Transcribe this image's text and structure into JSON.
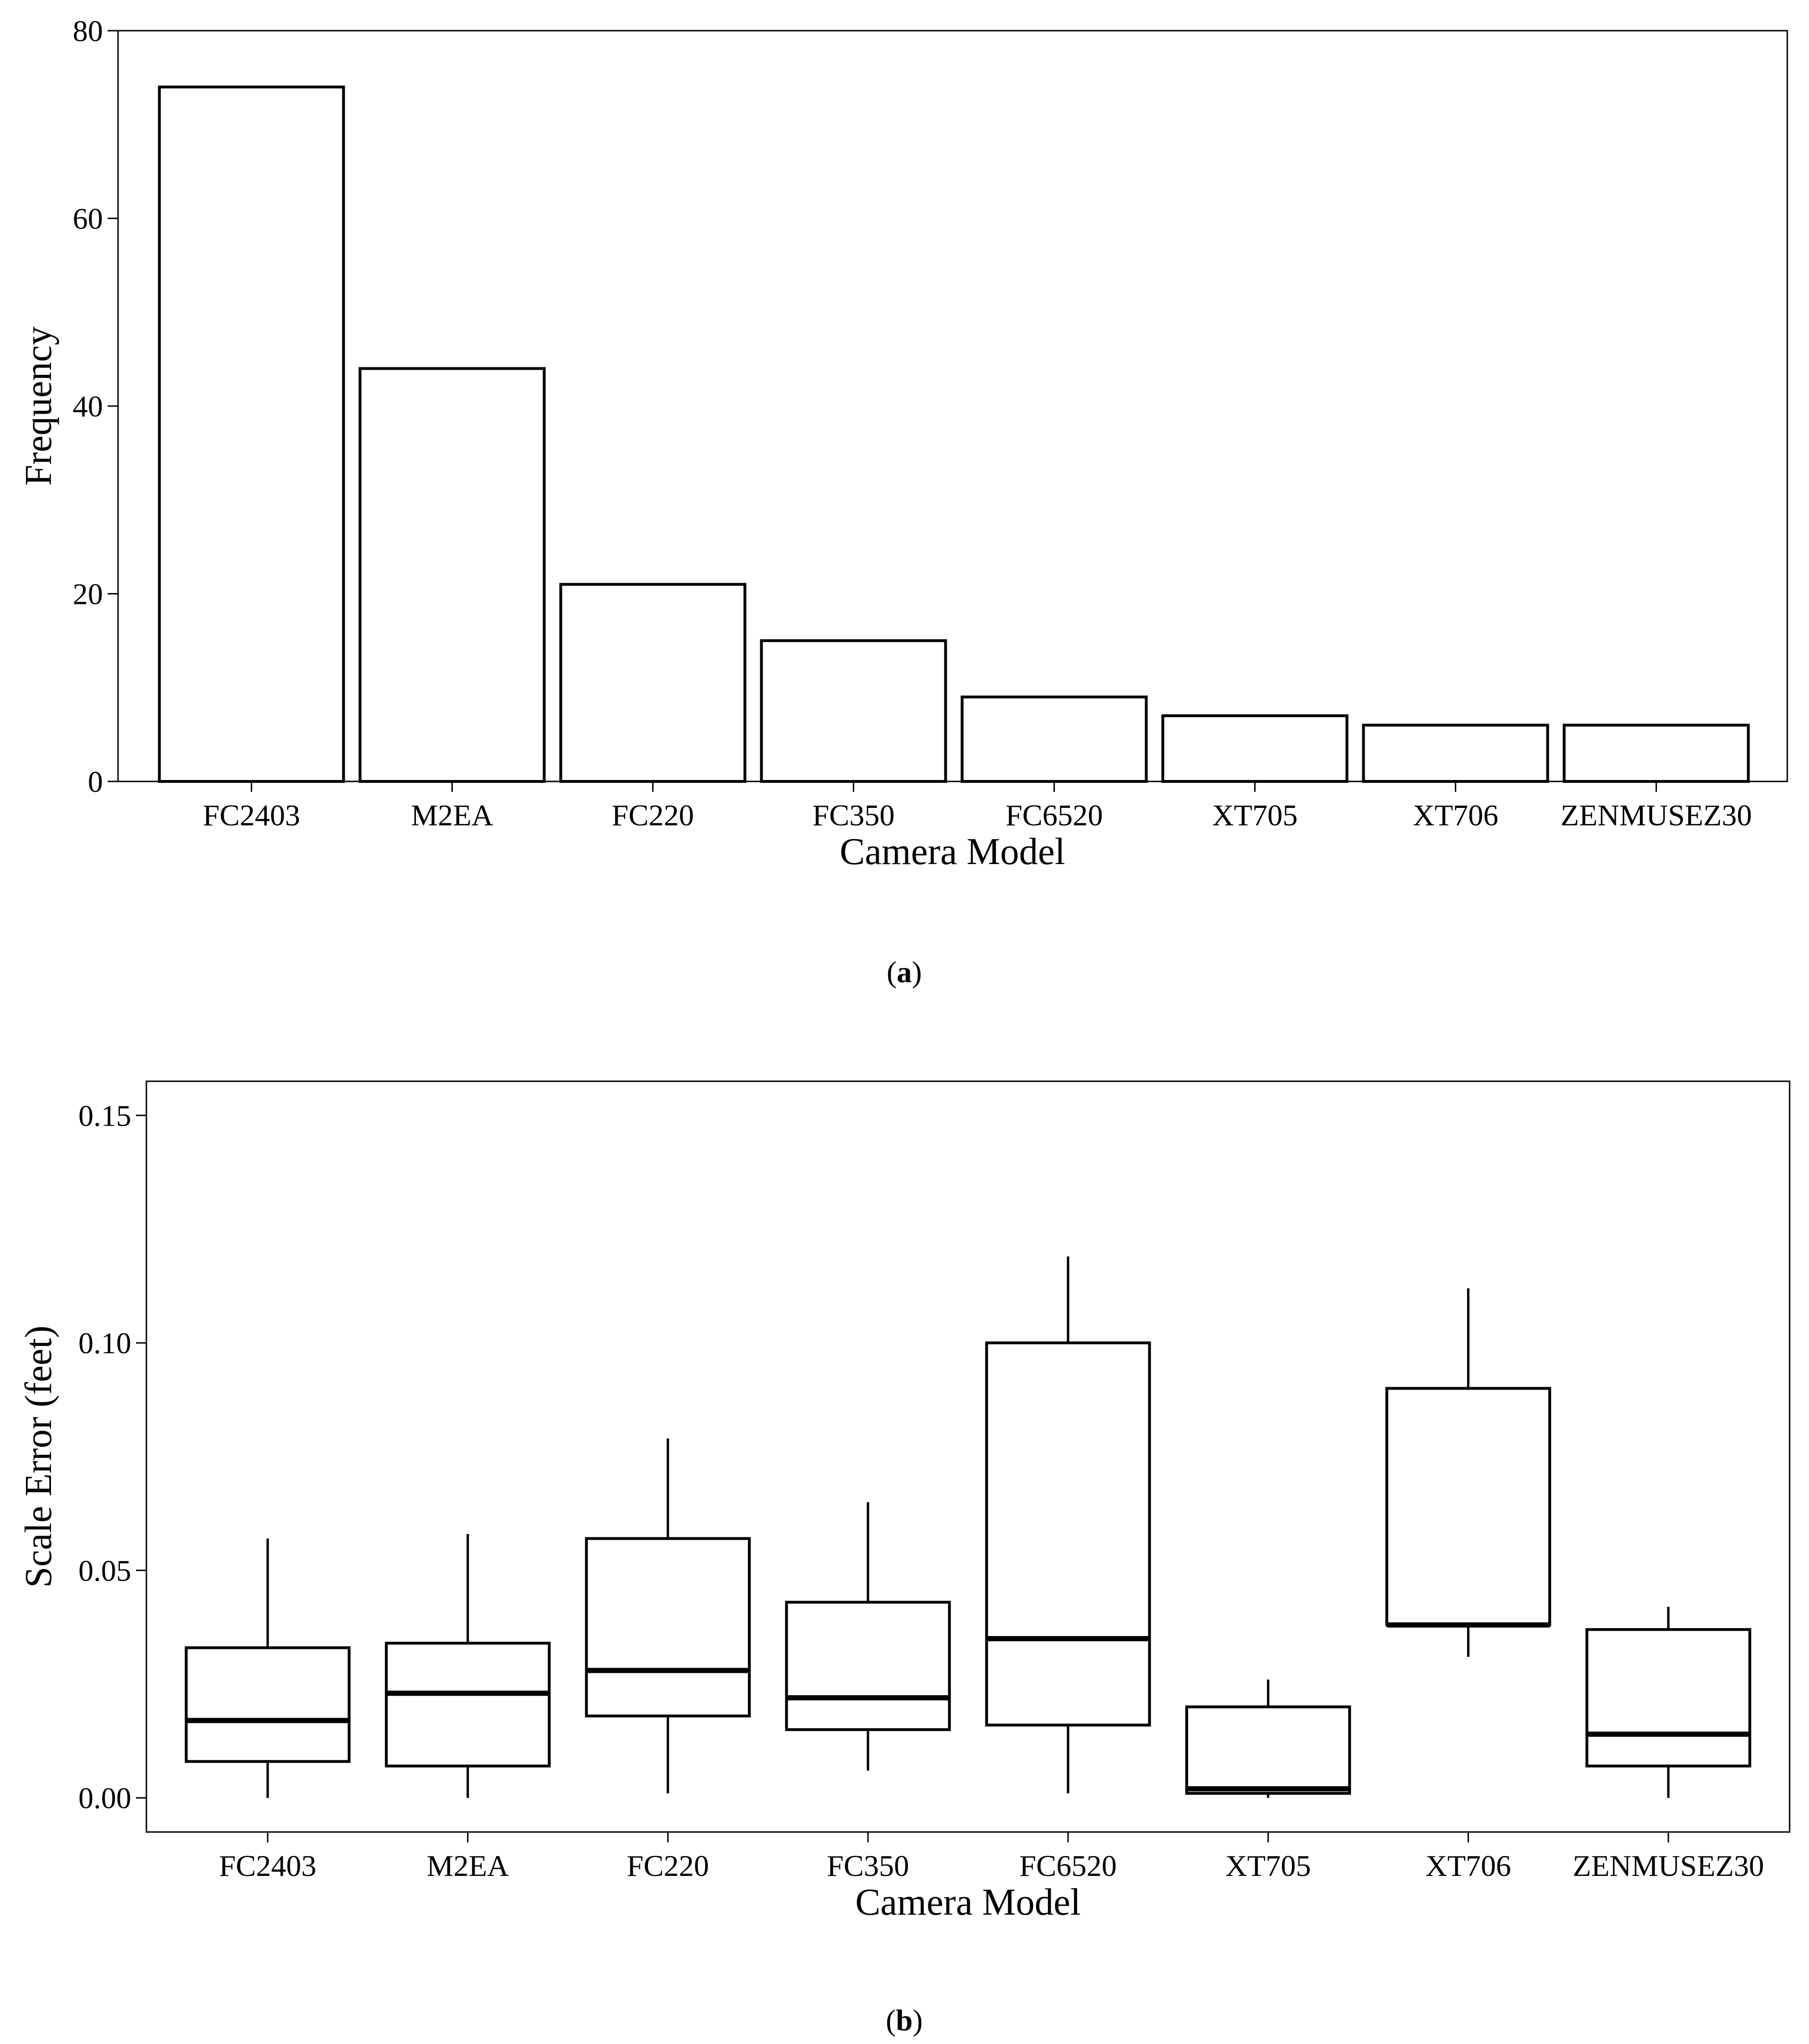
{
  "chart_data": [
    {
      "type": "bar",
      "panel_label": "a",
      "xlabel": "Camera Model",
      "ylabel": "Frequency",
      "ylim": [
        0,
        80
      ],
      "yticks": [
        0,
        20,
        40,
        60,
        80
      ],
      "categories": [
        "FC2403",
        "M2EA",
        "FC220",
        "FC350",
        "FC6520",
        "XT705",
        "XT706",
        "ZENMUSEZ30"
      ],
      "values": [
        74,
        44,
        21,
        15,
        9,
        7,
        6,
        6
      ]
    },
    {
      "type": "box",
      "panel_label": "b",
      "xlabel": "Camera Model",
      "ylabel": "Scale Error (feet)",
      "ylim": [
        -0.0075,
        0.1575
      ],
      "yticks": [
        "0.00",
        "0.05",
        "0.10",
        "0.15"
      ],
      "categories": [
        "FC2403",
        "M2EA",
        "FC220",
        "FC350",
        "FC6520",
        "XT705",
        "XT706",
        "ZENMUSEZ30"
      ],
      "boxes": [
        {
          "min": 0.0,
          "q1": 0.008,
          "median": 0.017,
          "q3": 0.033,
          "max": 0.057
        },
        {
          "min": 0.0,
          "q1": 0.007,
          "median": 0.023,
          "q3": 0.034,
          "max": 0.058
        },
        {
          "min": 0.001,
          "q1": 0.018,
          "median": 0.028,
          "q3": 0.057,
          "max": 0.079
        },
        {
          "min": 0.006,
          "q1": 0.015,
          "median": 0.022,
          "q3": 0.043,
          "max": 0.065
        },
        {
          "min": 0.001,
          "q1": 0.016,
          "median": 0.035,
          "q3": 0.1,
          "max": 0.119
        },
        {
          "min": 0.0,
          "q1": 0.001,
          "median": 0.002,
          "q3": 0.02,
          "max": 0.026
        },
        {
          "min": 0.031,
          "q1": 0.038,
          "median": 0.038,
          "q3": 0.09,
          "max": 0.112
        },
        {
          "min": 0.0,
          "q1": 0.007,
          "median": 0.014,
          "q3": 0.037,
          "max": 0.042
        }
      ]
    }
  ]
}
